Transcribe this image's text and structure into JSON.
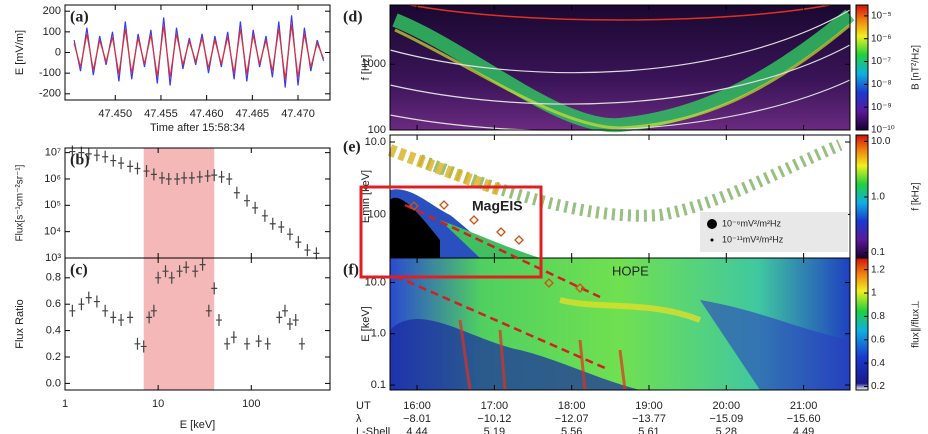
{
  "chart_data": [
    {
      "type": "line",
      "label": "(a)",
      "xlabel": "Time after 15:58:34",
      "ylabel": "E [mV/m]",
      "x": [
        47.4455,
        47.4462,
        47.4469,
        47.4476,
        47.4483,
        47.449,
        47.4497,
        47.4504,
        47.4511,
        47.4518,
        47.4525,
        47.4532,
        47.4539,
        47.4546,
        47.4553,
        47.456,
        47.4567,
        47.4574,
        47.4581,
        47.4588,
        47.4595,
        47.4602,
        47.4609,
        47.4616,
        47.4623,
        47.463,
        47.4637,
        47.4644,
        47.4651,
        47.4658,
        47.4665,
        47.4672,
        47.4679,
        47.4686,
        47.4693,
        47.47,
        47.4707,
        47.4714,
        47.4721,
        47.4728
      ],
      "series": [
        {
          "color": "#3a3af0",
          "values": [
            60,
            -90,
            120,
            -110,
            80,
            -60,
            100,
            -140,
            150,
            -130,
            90,
            -70,
            110,
            -150,
            170,
            -160,
            120,
            -80,
            70,
            -60,
            90,
            -100,
            80,
            -70,
            100,
            -130,
            150,
            -140,
            110,
            -70,
            80,
            -120,
            150,
            -170,
            180,
            -160,
            120,
            -90,
            60,
            -40
          ]
        },
        {
          "color": "#e03030",
          "values": [
            45,
            -70,
            90,
            -85,
            60,
            -45,
            75,
            -105,
            115,
            -100,
            70,
            -55,
            85,
            -115,
            130,
            -120,
            90,
            -60,
            55,
            -45,
            70,
            -75,
            60,
            -55,
            75,
            -100,
            115,
            -105,
            85,
            -55,
            60,
            -90,
            115,
            -130,
            135,
            -120,
            90,
            -70,
            45,
            -30
          ]
        }
      ],
      "xlim": [
        47.4445,
        47.4735
      ],
      "xticks": [
        {
          "value": 47.45,
          "label": "47.450"
        },
        47.455,
        {
          "value": 47.46,
          "label": "47.460"
        },
        47.465,
        {
          "value": 47.47,
          "label": "47.470"
        }
      ],
      "ylim": [
        -230,
        230
      ],
      "yticks": [
        -200,
        -100,
        0,
        100,
        200
      ]
    },
    {
      "type": "scatter",
      "label": "(b)",
      "ylabel": "Flux[s⁻¹cm⁻²sr⁻¹]",
      "x": [
        1.2,
        1.5,
        1.8,
        2.2,
        2.7,
        3.3,
        4,
        5,
        6,
        7.5,
        9,
        11,
        13,
        16,
        19,
        23,
        28,
        34,
        40,
        48,
        58,
        70,
        90,
        110,
        140,
        170,
        210,
        260,
        320,
        400,
        500
      ],
      "values": [
        11000000,
        10000000,
        9000000,
        8000000,
        7000000,
        5000000,
        4000000,
        3000000,
        2500000,
        2000000,
        1500000,
        1100000,
        1000000,
        1000000,
        1100000,
        1100000,
        1200000,
        1300000,
        1400000,
        1200000,
        1000000,
        300000,
        150000,
        80000,
        40000,
        20000,
        15000,
        8000,
        4000,
        2000,
        1500
      ],
      "color": "#444444",
      "xlim": [
        1,
        700
      ],
      "xlog": true,
      "ylim": [
        1000,
        15000000
      ],
      "ylog": true,
      "yticks": [
        {
          "value": 1000,
          "label": "10³"
        },
        {
          "value": 10000,
          "label": "10⁴"
        },
        {
          "value": 100000,
          "label": "10⁵"
        },
        {
          "value": 1000000,
          "label": "10⁶"
        },
        {
          "value": 10000000,
          "label": "10⁷"
        }
      ],
      "highlight": [
        7,
        40
      ],
      "highlight_color": "#f4b8b8"
    },
    {
      "type": "scatter",
      "label": "(c)",
      "xlabel": "E [keV]",
      "ylabel": "Flux Ratio",
      "x": [
        1.2,
        1.5,
        1.8,
        2.2,
        2.7,
        3.3,
        4,
        5,
        6,
        7,
        8,
        9,
        10,
        12,
        14,
        17,
        20,
        25,
        30,
        35,
        40,
        45,
        55,
        65,
        90,
        120,
        150,
        200,
        230,
        260,
        300,
        350
      ],
      "values": [
        0.55,
        0.6,
        0.65,
        0.62,
        0.55,
        0.5,
        0.48,
        0.5,
        0.3,
        0.28,
        0.5,
        0.55,
        0.8,
        0.85,
        0.8,
        0.85,
        0.88,
        0.85,
        0.9,
        0.55,
        0.72,
        0.48,
        0.3,
        0.35,
        0.3,
        0.32,
        0.3,
        0.5,
        0.55,
        0.45,
        0.48,
        0.3
      ],
      "color": "#444444",
      "xlim": [
        1,
        700
      ],
      "xlog": true,
      "xticks": [
        1,
        10,
        100
      ],
      "ylim": [
        -0.05,
        0.95
      ],
      "yticks": [
        {
          "value": 0,
          "label": "0.0"
        },
        0.2,
        0.4,
        0.6,
        0.8
      ],
      "highlight": [
        7,
        40
      ],
      "highlight_color": "#f4b8b8"
    },
    {
      "type": "spectrogram",
      "label": "(d)",
      "ylabel": "f [Hz]",
      "ylim": [
        100,
        8000
      ],
      "ylog": true,
      "yticks": [
        100,
        1000
      ],
      "colorbar": {
        "label": "B [nT²/Hz]",
        "lim": [
          1e-10,
          3e-05
        ],
        "log": true,
        "ticks": [
          {
            "value": 1e-05,
            "label": "10⁻⁵"
          },
          {
            "value": 1e-06,
            "label": "10⁻⁶"
          },
          {
            "value": 1e-07,
            "label": "10⁻⁷"
          },
          {
            "value": 1e-08,
            "label": "10⁻⁸"
          },
          {
            "value": 1e-09,
            "label": "10⁻⁹"
          },
          {
            "value": 1e-10,
            "label": "10⁻¹⁰"
          }
        ]
      }
    },
    {
      "type": "spectrogram",
      "label": "(e)",
      "ylabel": "Emin [keV]",
      "ylim": [
        400,
        8
      ],
      "ylog": true,
      "yticks": [
        {
          "value": 10,
          "label": "10.0"
        },
        100
      ],
      "annotation": "MagEIS",
      "legend": [
        "10⁻⁶mV²/m²Hz",
        "10⁻¹¹mV²/m²Hz"
      ],
      "colorbar": {
        "label": "f [kHz]",
        "lim": [
          0.08,
          13
        ],
        "log": true,
        "ticks": [
          {
            "value": 10,
            "label": "10.0"
          },
          {
            "value": 1,
            "label": "1.0"
          },
          0.1
        ]
      }
    },
    {
      "type": "spectrogram",
      "label": "(f)",
      "ylabel": "E [keV]",
      "ylim": [
        0.08,
        30
      ],
      "ylog": true,
      "yticks": [
        {
          "value": 10,
          "label": "10.0"
        },
        {
          "value": 1,
          "label": "1.0"
        },
        0.1
      ],
      "annotation": "HOPE",
      "xlabel": "UT",
      "xlim": [
        15.65,
        21.6
      ],
      "xticks": [
        {
          "value": 16,
          "label": "16:00"
        },
        {
          "value": 17,
          "label": "17:00"
        },
        {
          "value": 18,
          "label": "18:00"
        },
        {
          "value": 19,
          "label": "19:00"
        },
        {
          "value": 20,
          "label": "20:00"
        },
        {
          "value": 21,
          "label": "21:00"
        }
      ],
      "x_rows": [
        {
          "name": "λ",
          "values": [
            -8.01,
            -10.12,
            -12.07,
            -13.77,
            -15.09,
            -15.6
          ],
          "value_labels": [
            "−8.01",
            "−10.12",
            "−12.07",
            "−13.77",
            "−15.09",
            "−15.60"
          ]
        },
        {
          "name": "L-Shell",
          "values": [
            4.44,
            5.19,
            5.56,
            5.61,
            5.28,
            4.49
          ]
        }
      ],
      "colorbar": {
        "label": "flux∥/flux⊥",
        "lim": [
          0.17,
          1.3
        ],
        "log": false,
        "ticks": [
          0.2,
          0.4,
          0.6,
          0.8,
          1.0,
          1.2
        ]
      }
    }
  ]
}
